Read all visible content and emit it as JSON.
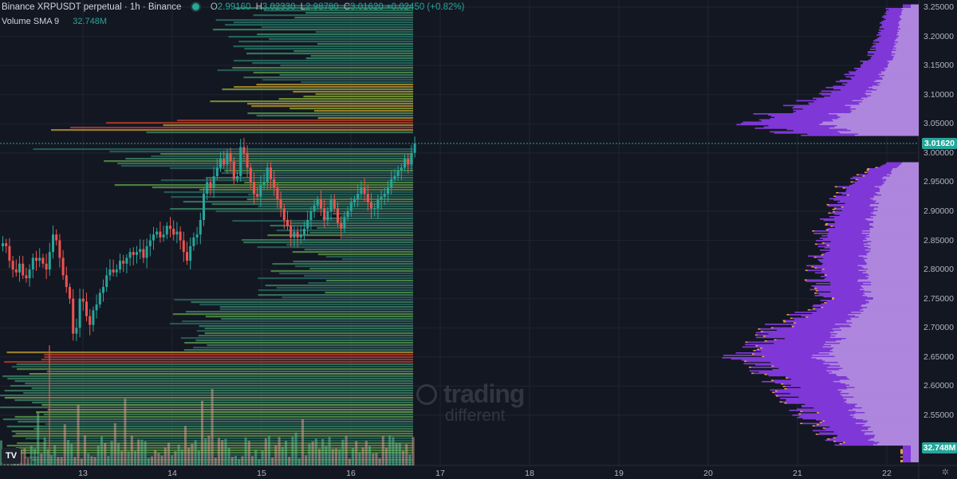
{
  "header": {
    "title": "Binance XRPUSDT perpetual · 1h · Binance",
    "ohlc": {
      "o_key": "O",
      "o_val": "2.99160",
      "h_key": "H",
      "h_val": "3.02330",
      "l_key": "L",
      "l_val": "2.98780",
      "c_key": "C",
      "c_val": "3.01620",
      "chg": "+0.02450 (+0.82%)"
    },
    "volume_label": "Volume SMA 9",
    "volume_value": "32.748M"
  },
  "colors": {
    "background": "#131722",
    "bull": "#26a69a",
    "bear": "#ef5350",
    "profile_light": "#b68be8",
    "profile_dark": "#7a2fd6",
    "profile_edge": "#e39a4c",
    "last_price_tag": "#26a69a",
    "volume_tag": "#26a69a"
  },
  "price_axis": {
    "ticks": [
      "3.25000",
      "3.20000",
      "3.15000",
      "3.10000",
      "3.05000",
      "3.00000",
      "2.95000",
      "2.90000",
      "2.85000",
      "2.80000",
      "2.75000",
      "2.70000",
      "2.65000",
      "2.60000",
      "2.55000"
    ],
    "last_price": "3.01620",
    "volume_tag": "32.748M"
  },
  "time_axis": {
    "labels": [
      "13",
      "14",
      "15",
      "16",
      "17",
      "18",
      "19",
      "20",
      "21",
      "22"
    ]
  },
  "watermark": {
    "line1": "trading",
    "line2": "different"
  },
  "chart_data": {
    "type": "candlestick",
    "symbol": "XRPUSDT perpetual",
    "interval": "1h",
    "ylim": [
      2.45,
      3.27
    ],
    "x_axis_days": [
      13,
      14,
      15,
      16,
      17,
      18,
      19,
      20,
      21,
      22
    ],
    "last_price": 3.0162,
    "closes": [
      2.845,
      2.84,
      2.815,
      2.8,
      2.795,
      2.81,
      2.79,
      2.785,
      2.8,
      2.82,
      2.815,
      2.82,
      2.81,
      2.8,
      2.83,
      2.86,
      2.85,
      2.82,
      2.79,
      2.77,
      2.75,
      2.69,
      2.7,
      2.75,
      2.745,
      2.72,
      2.705,
      2.73,
      2.74,
      2.76,
      2.77,
      2.79,
      2.8,
      2.795,
      2.8,
      2.815,
      2.81,
      2.82,
      2.83,
      2.825,
      2.83,
      2.835,
      2.82,
      2.84,
      2.85,
      2.86,
      2.865,
      2.855,
      2.86,
      2.875,
      2.87,
      2.86,
      2.865,
      2.85,
      2.83,
      2.815,
      2.84,
      2.855,
      2.86,
      2.885,
      2.93,
      2.95,
      2.94,
      2.96,
      2.975,
      2.99,
      2.98,
      3.0,
      2.985,
      2.955,
      2.96,
      3.01,
      3.0,
      2.975,
      2.95,
      2.93,
      2.925,
      2.945,
      2.95,
      2.975,
      2.955,
      2.94,
      2.92,
      2.905,
      2.885,
      2.875,
      2.855,
      2.865,
      2.855,
      2.86,
      2.87,
      2.885,
      2.9,
      2.91,
      2.92,
      2.905,
      2.885,
      2.9,
      2.92,
      2.905,
      2.88,
      2.87,
      2.89,
      2.9,
      2.915,
      2.92,
      2.93,
      2.94,
      2.93,
      2.915,
      2.905,
      2.905,
      2.92,
      2.925,
      2.93,
      2.94,
      2.955,
      2.96,
      2.97,
      2.975,
      2.99,
      2.98,
      3.0,
      3.016
    ],
    "volume_profile": {
      "description_values": "relative volume per price level, right-anchored session profile",
      "price_levels": [
        3.25,
        3.2,
        3.15,
        3.1,
        3.05,
        3.0,
        2.95,
        2.9,
        2.85,
        2.8,
        2.75,
        2.7,
        2.65,
        2.6,
        2.55,
        2.5
      ],
      "relative_volume": [
        0.1,
        0.15,
        0.25,
        0.5,
        1.0,
        0.0,
        0.35,
        0.45,
        0.5,
        0.55,
        0.5,
        0.8,
        1.0,
        0.75,
        0.6,
        0.4
      ]
    },
    "volume_sma9": 32748000
  }
}
